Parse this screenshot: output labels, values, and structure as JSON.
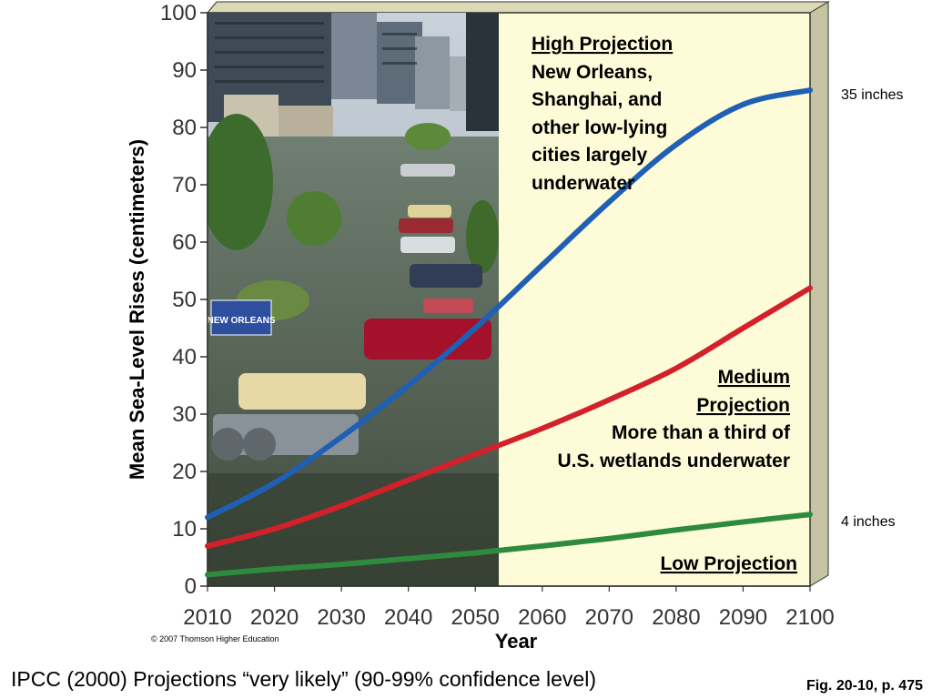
{
  "chart_data": {
    "type": "line",
    "title": "",
    "xlabel": "Year",
    "ylabel": "Mean Sea-Level Rises (centimeters)",
    "xlim": [
      2010,
      2100
    ],
    "ylim": [
      0,
      100
    ],
    "xticks": [
      2010,
      2020,
      2030,
      2040,
      2050,
      2060,
      2070,
      2080,
      2090,
      2100
    ],
    "yticks": [
      0,
      10,
      20,
      30,
      40,
      50,
      60,
      70,
      80,
      90,
      100
    ],
    "grid": false,
    "series": [
      {
        "name": "High Projection",
        "color": "#1f5fb4",
        "x": [
          2010,
          2020,
          2030,
          2040,
          2050,
          2060,
          2070,
          2080,
          2090,
          2100
        ],
        "values": [
          12,
          18,
          26,
          35,
          45,
          56,
          67,
          77,
          84,
          86.5
        ]
      },
      {
        "name": "Medium Projection",
        "color": "#d4202a",
        "x": [
          2010,
          2020,
          2030,
          2040,
          2050,
          2060,
          2070,
          2080,
          2090,
          2100
        ],
        "values": [
          7,
          10,
          14,
          18.5,
          23,
          27.5,
          32.5,
          38,
          45,
          52
        ]
      },
      {
        "name": "Low Projection",
        "color": "#2e8b3e",
        "x": [
          2010,
          2020,
          2030,
          2040,
          2050,
          2060,
          2070,
          2080,
          2090,
          2100
        ],
        "values": [
          2,
          3,
          3.8,
          4.8,
          5.8,
          7,
          8.3,
          9.8,
          11.2,
          12.5
        ]
      }
    ],
    "annotations": {
      "high_title": "High Projection",
      "high_lines": [
        "New Orleans,",
        "Shanghai, and",
        "other low-lying",
        "cities largely",
        "underwater"
      ],
      "medium_title_lines": [
        "Medium",
        "Projection"
      ],
      "medium_lines": [
        "More than a third of",
        "U.S. wetlands underwater"
      ],
      "low_title": "Low Projection",
      "right_top": "35 inches",
      "right_bottom": "4 inches"
    },
    "photo_sign": [
      "NEW ORLEANS"
    ]
  },
  "copyright": "© 2007 Thomson Higher Education",
  "caption": "IPCC (2000) Projections “very likely” (90-99% confidence level)",
  "fig_ref": "Fig. 20-10, p. 475",
  "colors": {
    "plot_bg": "#fefcd8",
    "depth_side": "#c6c4a0",
    "frame": "#333333"
  }
}
